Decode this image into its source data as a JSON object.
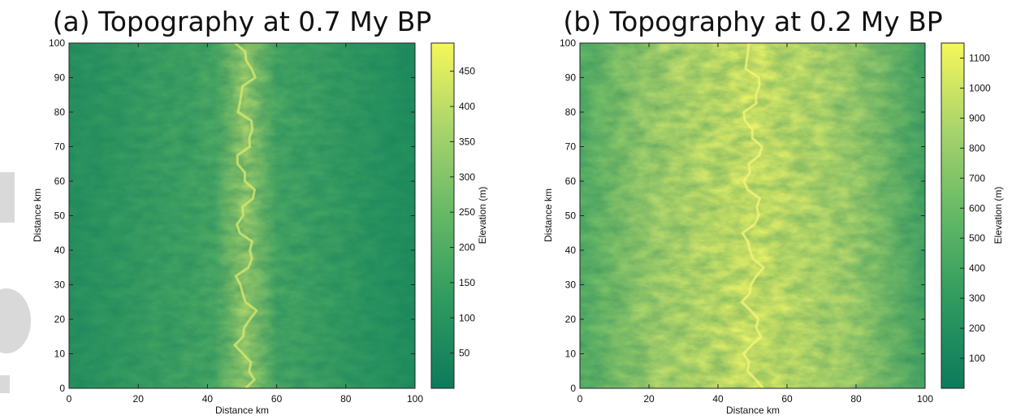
{
  "chart_data": [
    {
      "type": "heatmap",
      "title": "(a) Topography at 0.7 My BP",
      "xlabel": "Distance km",
      "ylabel": "Distance km",
      "xlim": [
        0,
        100
      ],
      "ylim": [
        0,
        100
      ],
      "xticks": [
        0,
        20,
        40,
        60,
        80,
        100
      ],
      "yticks": [
        0,
        10,
        20,
        30,
        40,
        50,
        60,
        70,
        80,
        90,
        100
      ],
      "grid": false,
      "colorbar": {
        "label": "Elevation (m)",
        "min": 0,
        "max": 490,
        "ticks": [
          50,
          100,
          150,
          200,
          250,
          300,
          350,
          400,
          450
        ],
        "colormap": [
          "#0d7a5c",
          "#2e9a5f",
          "#64b866",
          "#a8d46c",
          "#f5f75a"
        ]
      },
      "terrain": {
        "divide_x_km": 51,
        "base_elevation_fraction": 0.3
      }
    },
    {
      "type": "heatmap",
      "title": "(b) Topography at 0.2 My BP",
      "xlabel": "Distance km",
      "ylabel": "Distance km",
      "xlim": [
        0,
        100
      ],
      "ylim": [
        0,
        100
      ],
      "xticks": [
        0,
        20,
        40,
        60,
        80,
        100
      ],
      "yticks": [
        0,
        10,
        20,
        30,
        40,
        50,
        60,
        70,
        80,
        90,
        100
      ],
      "grid": false,
      "colorbar": {
        "label": "Elevation (m)",
        "min": 0,
        "max": 1150,
        "ticks": [
          100,
          200,
          300,
          400,
          500,
          600,
          700,
          800,
          900,
          1000,
          1100
        ],
        "colormap": [
          "#0d7a5c",
          "#2e9a5f",
          "#64b866",
          "#a8d46c",
          "#f5f75a"
        ]
      },
      "terrain": {
        "divide_x_km": 50,
        "base_elevation_fraction": 0.75
      }
    }
  ]
}
